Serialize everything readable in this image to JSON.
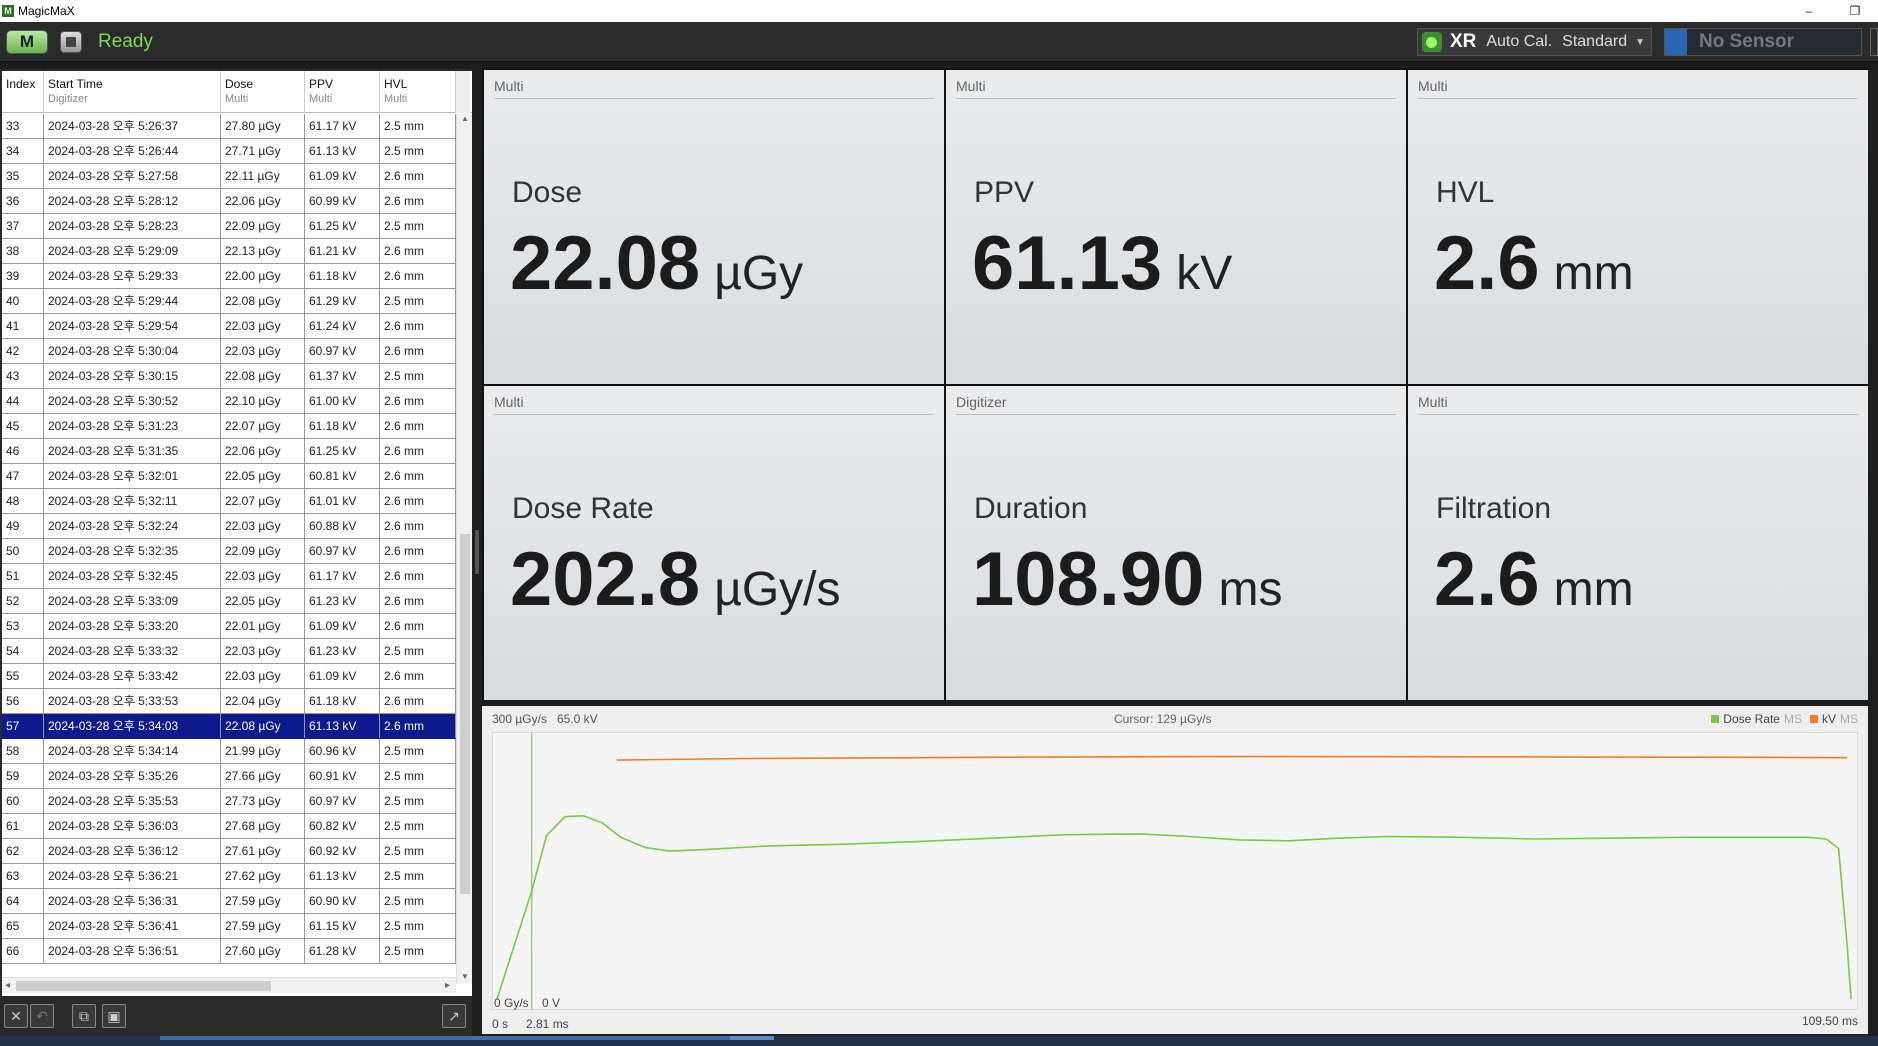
{
  "window": {
    "title": "MagicMaX",
    "minimize": "–",
    "restore": "❐"
  },
  "toolbar": {
    "mode_label": "M",
    "status": "Ready",
    "xr_label": "XR",
    "auto_cal": "Auto Cal.",
    "standard": "Standard",
    "sensor": "No Sensor",
    "colors": {
      "status": "#7ed957",
      "led": "#9cf36f",
      "sensor_accent": "#2b66b5"
    }
  },
  "table": {
    "columns": [
      {
        "name": "Index",
        "sub": ""
      },
      {
        "name": "Start Time",
        "sub": "Digitizer"
      },
      {
        "name": "Dose",
        "sub": "Multi"
      },
      {
        "name": "PPV",
        "sub": "Multi"
      },
      {
        "name": "HVL",
        "sub": "Multi"
      }
    ],
    "selected_index": "57",
    "rows": [
      [
        "33",
        "2024-03-28 오후 5:26:37",
        "27.80 µGy",
        "61.17 kV",
        "2.5 mm"
      ],
      [
        "34",
        "2024-03-28 오후 5:26:44",
        "27.71 µGy",
        "61.13 kV",
        "2.5 mm"
      ],
      [
        "35",
        "2024-03-28 오후 5:27:58",
        "22.11 µGy",
        "61.09 kV",
        "2.6 mm"
      ],
      [
        "36",
        "2024-03-28 오후 5:28:12",
        "22.06 µGy",
        "60.99 kV",
        "2.6 mm"
      ],
      [
        "37",
        "2024-03-28 오후 5:28:23",
        "22.09 µGy",
        "61.25 kV",
        "2.5 mm"
      ],
      [
        "38",
        "2024-03-28 오후 5:29:09",
        "22.13 µGy",
        "61.21 kV",
        "2.6 mm"
      ],
      [
        "39",
        "2024-03-28 오후 5:29:33",
        "22.00 µGy",
        "61.18 kV",
        "2.6 mm"
      ],
      [
        "40",
        "2024-03-28 오후 5:29:44",
        "22.08 µGy",
        "61.29 kV",
        "2.5 mm"
      ],
      [
        "41",
        "2024-03-28 오후 5:29:54",
        "22.03 µGy",
        "61.24 kV",
        "2.6 mm"
      ],
      [
        "42",
        "2024-03-28 오후 5:30:04",
        "22.03 µGy",
        "60.97 kV",
        "2.6 mm"
      ],
      [
        "43",
        "2024-03-28 오후 5:30:15",
        "22.08 µGy",
        "61.37 kV",
        "2.5 mm"
      ],
      [
        "44",
        "2024-03-28 오후 5:30:52",
        "22.10 µGy",
        "61.00 kV",
        "2.6 mm"
      ],
      [
        "45",
        "2024-03-28 오후 5:31:23",
        "22.07 µGy",
        "61.18 kV",
        "2.6 mm"
      ],
      [
        "46",
        "2024-03-28 오후 5:31:35",
        "22.06 µGy",
        "61.25 kV",
        "2.6 mm"
      ],
      [
        "47",
        "2024-03-28 오후 5:32:01",
        "22.05 µGy",
        "60.81 kV",
        "2.6 mm"
      ],
      [
        "48",
        "2024-03-28 오후 5:32:11",
        "22.07 µGy",
        "61.01 kV",
        "2.6 mm"
      ],
      [
        "49",
        "2024-03-28 오후 5:32:24",
        "22.03 µGy",
        "60.88 kV",
        "2.6 mm"
      ],
      [
        "50",
        "2024-03-28 오후 5:32:35",
        "22.09 µGy",
        "60.97 kV",
        "2.6 mm"
      ],
      [
        "51",
        "2024-03-28 오후 5:32:45",
        "22.03 µGy",
        "61.17 kV",
        "2.6 mm"
      ],
      [
        "52",
        "2024-03-28 오후 5:33:09",
        "22.05 µGy",
        "61.23 kV",
        "2.6 mm"
      ],
      [
        "53",
        "2024-03-28 오후 5:33:20",
        "22.01 µGy",
        "61.09 kV",
        "2.6 mm"
      ],
      [
        "54",
        "2024-03-28 오후 5:33:32",
        "22.03 µGy",
        "61.23 kV",
        "2.5 mm"
      ],
      [
        "55",
        "2024-03-28 오후 5:33:42",
        "22.03 µGy",
        "61.09 kV",
        "2.6 mm"
      ],
      [
        "56",
        "2024-03-28 오후 5:33:53",
        "22.04 µGy",
        "61.18 kV",
        "2.6 mm"
      ],
      [
        "57",
        "2024-03-28 오후 5:34:03",
        "22.08 µGy",
        "61.13 kV",
        "2.6 mm"
      ],
      [
        "58",
        "2024-03-28 오후 5:34:14",
        "21.99 µGy",
        "60.96 kV",
        "2.5 mm"
      ],
      [
        "59",
        "2024-03-28 오후 5:35:26",
        "27.66 µGy",
        "60.91 kV",
        "2.5 mm"
      ],
      [
        "60",
        "2024-03-28 오후 5:35:53",
        "27.73 µGy",
        "60.97 kV",
        "2.5 mm"
      ],
      [
        "61",
        "2024-03-28 오후 5:36:03",
        "27.68 µGy",
        "60.82 kV",
        "2.5 mm"
      ],
      [
        "62",
        "2024-03-28 오후 5:36:12",
        "27.61 µGy",
        "60.92 kV",
        "2.5 mm"
      ],
      [
        "63",
        "2024-03-28 오후 5:36:21",
        "27.62 µGy",
        "61.13 kV",
        "2.5 mm"
      ],
      [
        "64",
        "2024-03-28 오후 5:36:31",
        "27.59 µGy",
        "60.90 kV",
        "2.5 mm"
      ],
      [
        "65",
        "2024-03-28 오후 5:36:41",
        "27.59 µGy",
        "61.15 kV",
        "2.5 mm"
      ],
      [
        "66",
        "2024-03-28 오후 5:36:51",
        "27.60 µGy",
        "61.28 kV",
        "2.5 mm"
      ]
    ]
  },
  "tiles": [
    {
      "source": "Multi",
      "label": "Dose",
      "value": "22.08",
      "unit": "µGy"
    },
    {
      "source": "Multi",
      "label": "PPV",
      "value": "61.13",
      "unit": "kV"
    },
    {
      "source": "Multi",
      "label": "HVL",
      "value": "2.6",
      "unit": "mm"
    },
    {
      "source": "Multi",
      "label": "Dose Rate",
      "value": "202.8",
      "unit": "µGy/s"
    },
    {
      "source": "Digitizer",
      "label": "Duration",
      "value": "108.90",
      "unit": "ms"
    },
    {
      "source": "Multi",
      "label": "Filtration",
      "value": "2.6",
      "unit": "mm"
    }
  ],
  "chart": {
    "y_top_left": "300 µGy/s",
    "y_top_right": "65.0 kV",
    "y_bottom_left": "0 Gy/s",
    "y_bottom_right": "0 V",
    "cursor": "Cursor: 129 µGy/s",
    "legend": [
      {
        "name": "Dose Rate",
        "suffix": "MS",
        "color": "#7ac943"
      },
      {
        "name": "kV",
        "suffix": "MS",
        "color": "#f07c2a"
      }
    ],
    "x_start": "0 s",
    "x_cursor": "2.81 ms",
    "x_end": "109.50 ms"
  },
  "chart_data": {
    "type": "line",
    "xlim": [
      0,
      109.5
    ],
    "cursor_x": 2.81,
    "series": [
      {
        "name": "Dose Rate",
        "color": "#7ac943",
        "ylim": [
          0,
          300
        ],
        "points": [
          [
            0,
            0
          ],
          [
            2.8,
            125
          ],
          [
            4,
            190
          ],
          [
            5.5,
            212
          ],
          [
            7,
            213
          ],
          [
            8.5,
            205
          ],
          [
            10,
            188
          ],
          [
            12,
            176
          ],
          [
            14,
            172
          ],
          [
            17,
            174
          ],
          [
            22,
            178
          ],
          [
            28,
            180
          ],
          [
            34,
            183
          ],
          [
            40,
            187
          ],
          [
            46,
            191
          ],
          [
            52,
            192
          ],
          [
            56,
            189
          ],
          [
            60,
            185
          ],
          [
            64,
            184
          ],
          [
            68,
            187
          ],
          [
            72,
            189
          ],
          [
            78,
            188
          ],
          [
            84,
            186
          ],
          [
            90,
            187
          ],
          [
            96,
            188
          ],
          [
            102,
            188
          ],
          [
            106,
            188
          ],
          [
            107.5,
            186
          ],
          [
            108.5,
            175
          ],
          [
            109.2,
            60
          ],
          [
            109.5,
            0
          ]
        ]
      },
      {
        "name": "kV",
        "color": "#f07c2a",
        "ylim": [
          0,
          65
        ],
        "points": [
          [
            9.7,
            60.2
          ],
          [
            20,
            60.6
          ],
          [
            40,
            60.9
          ],
          [
            60,
            61.1
          ],
          [
            80,
            61.0
          ],
          [
            100,
            60.9
          ],
          [
            109.2,
            60.8
          ]
        ]
      }
    ]
  }
}
